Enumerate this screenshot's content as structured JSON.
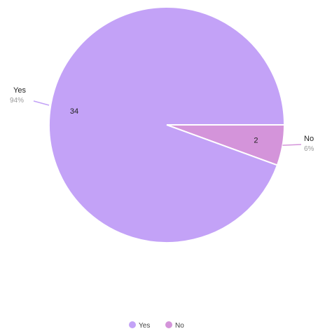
{
  "chart_data": {
    "type": "pie",
    "slices": [
      {
        "name": "Yes",
        "value": 34,
        "percent_label": "94%",
        "color": "#c3a2f7"
      },
      {
        "name": "No",
        "value": 2,
        "percent_label": "6%",
        "color": "#d494da"
      }
    ],
    "legend": {
      "placement": "bottom",
      "items": [
        "Yes",
        "No"
      ]
    }
  }
}
